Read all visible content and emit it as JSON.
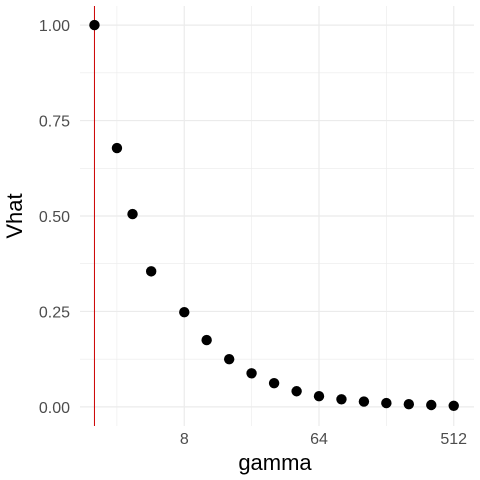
{
  "chart_data": {
    "type": "scatter",
    "xlabel": "gamma",
    "ylabel": "Vhat",
    "x_scale": "log2",
    "xlim": [
      1.6,
      700
    ],
    "ylim": [
      -0.05,
      1.05
    ],
    "x_ticks": [
      {
        "value": 8,
        "label": "8"
      },
      {
        "value": 64,
        "label": "64"
      },
      {
        "value": 512,
        "label": "512"
      }
    ],
    "y_ticks": [
      {
        "value": 0,
        "label": "0.00"
      },
      {
        "value": 0.25,
        "label": "0.25"
      },
      {
        "value": 0.5,
        "label": "0.50"
      },
      {
        "value": 0.75,
        "label": "0.75"
      },
      {
        "value": 1,
        "label": "1.00"
      }
    ],
    "vline_x": 2,
    "grid": true,
    "colors": {
      "points": "#000000",
      "vline": "#cc0000",
      "grid": "#ebebeb"
    },
    "points": [
      {
        "x": 2,
        "y": 1.0
      },
      {
        "x": 2.83,
        "y": 0.678
      },
      {
        "x": 3.6,
        "y": 0.505
      },
      {
        "x": 4.8,
        "y": 0.355
      },
      {
        "x": 8,
        "y": 0.248
      },
      {
        "x": 11.3,
        "y": 0.175
      },
      {
        "x": 16,
        "y": 0.125
      },
      {
        "x": 22.6,
        "y": 0.088
      },
      {
        "x": 32,
        "y": 0.062
      },
      {
        "x": 45.3,
        "y": 0.041
      },
      {
        "x": 64,
        "y": 0.028
      },
      {
        "x": 90.5,
        "y": 0.02
      },
      {
        "x": 128,
        "y": 0.014
      },
      {
        "x": 181,
        "y": 0.01
      },
      {
        "x": 256,
        "y": 0.007
      },
      {
        "x": 362,
        "y": 0.005
      },
      {
        "x": 512,
        "y": 0.003
      }
    ]
  }
}
